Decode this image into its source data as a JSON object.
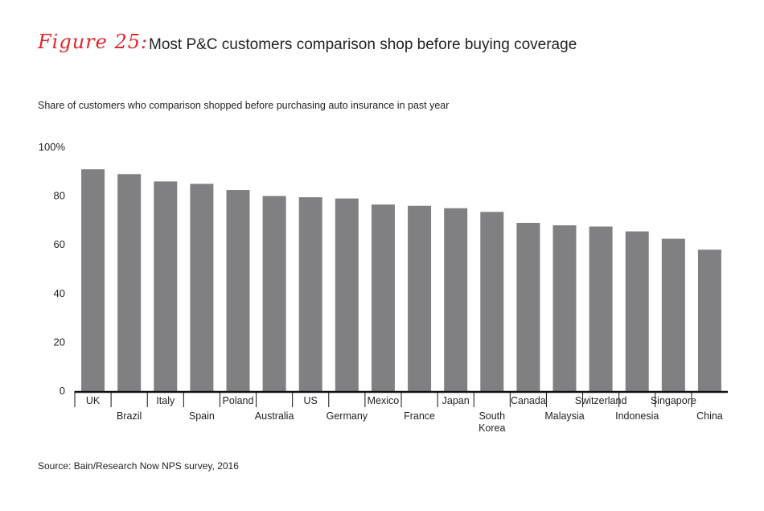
{
  "figure": {
    "label": "Figure 25:",
    "title": "Most P&C customers comparison shop before buying coverage",
    "subtitle": "Share of customers who comparison shopped before purchasing auto insurance in past year",
    "source": "Source: Bain/Research Now NPS survey, 2016"
  },
  "colors": {
    "bar": "#808083",
    "accent": "#e0262a",
    "axis": "#111111"
  },
  "chart_data": {
    "type": "bar",
    "categories": [
      "UK",
      "Brazil",
      "Italy",
      "Spain",
      "Poland",
      "Australia",
      "US",
      "Germany",
      "Mexico",
      "France",
      "Japan",
      "South Korea",
      "Canada",
      "Malaysia",
      "Switzerland",
      "Indonesia",
      "Singapore",
      "China"
    ],
    "values": [
      91,
      89,
      86,
      85,
      82.5,
      80,
      79.5,
      79,
      76.5,
      76,
      75,
      73.5,
      69,
      68,
      67.5,
      65.5,
      62.5,
      58
    ],
    "yticks": [
      "0",
      "20",
      "40",
      "60",
      "80",
      "100%"
    ],
    "ylim": [
      0,
      100
    ],
    "xlabel": "",
    "ylabel": "",
    "grid": false
  }
}
